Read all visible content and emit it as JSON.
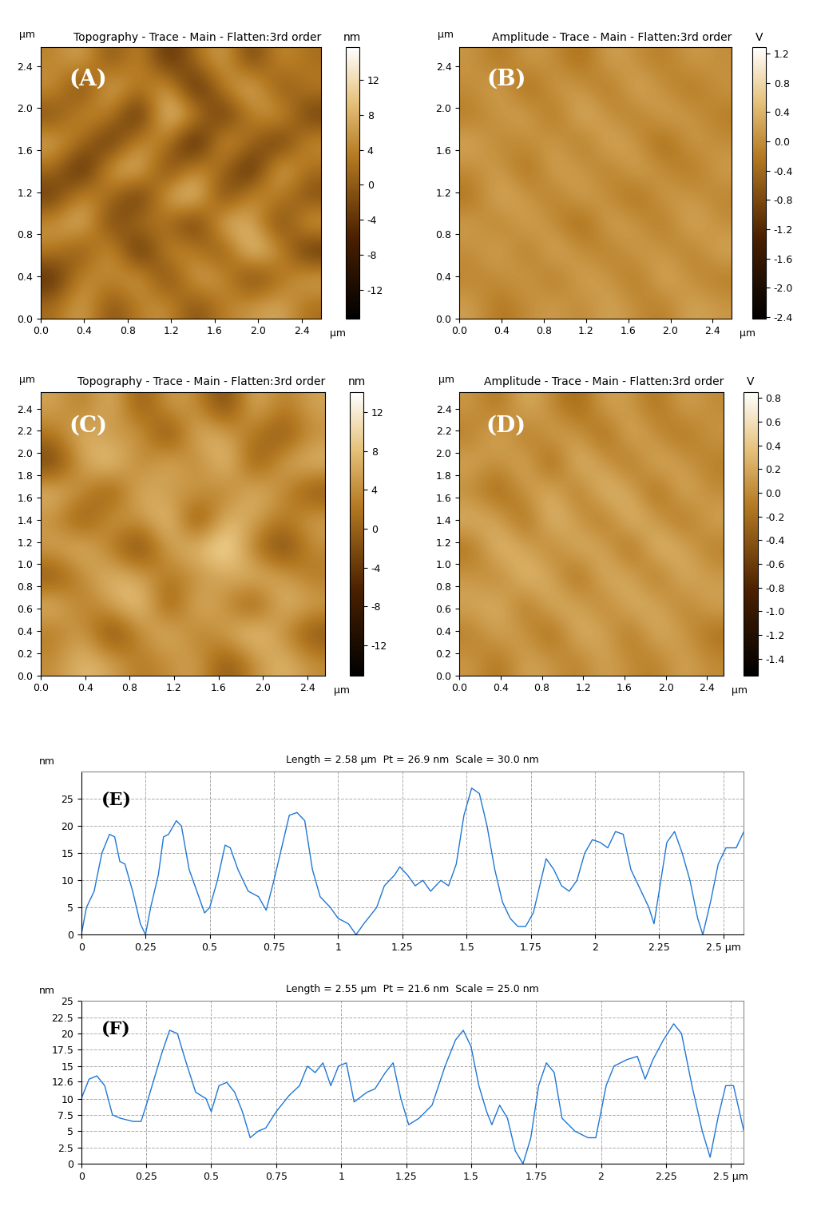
{
  "chart_data": [
    {
      "type": "heatmap",
      "title": "Topography - Trace - Main - Flatten:3rd order",
      "annotations": [
        "(A)"
      ],
      "xlabel": "µm",
      "ylabel": "µm",
      "colorbar_label": "nm",
      "xlim": [
        0,
        2.58
      ],
      "ylim": [
        0,
        2.58
      ],
      "xticks": [
        0.0,
        0.4,
        0.8,
        1.2,
        1.6,
        2.0,
        2.4
      ],
      "yticks": [
        0.0,
        0.4,
        0.8,
        1.2,
        1.6,
        2.0,
        2.4
      ],
      "colorbar_range": [
        -15.3,
        15.8
      ],
      "colorbar_ticks": [
        12,
        8,
        4,
        0,
        -4,
        -8,
        -12
      ],
      "cells": [
        [
          4,
          8,
          -2,
          6,
          -6,
          2,
          8,
          -4,
          6,
          2
        ],
        [
          6,
          -4,
          10,
          2,
          8,
          -8,
          4,
          10,
          -2,
          4
        ],
        [
          -2,
          6,
          4,
          -8,
          12,
          6,
          -6,
          4,
          8,
          -4
        ],
        [
          8,
          2,
          -6,
          6,
          4,
          -10,
          8,
          2,
          -6,
          6
        ],
        [
          2,
          -8,
          8,
          10,
          -4,
          6,
          2,
          -8,
          10,
          2
        ],
        [
          -4,
          6,
          2,
          -6,
          8,
          12,
          -4,
          6,
          4,
          -2
        ],
        [
          6,
          10,
          -4,
          4,
          2,
          -6,
          10,
          8,
          -4,
          8
        ],
        [
          4,
          -2,
          8,
          -8,
          6,
          4,
          -2,
          12,
          6,
          -6
        ],
        [
          -6,
          6,
          4,
          8,
          -4,
          8,
          6,
          -4,
          2,
          8
        ],
        [
          2,
          8,
          -2,
          4,
          6,
          -2,
          4,
          6,
          8,
          2
        ]
      ]
    },
    {
      "type": "heatmap",
      "title": "Amplitude - Trace - Main - Flatten:3rd order",
      "annotations": [
        "(B)"
      ],
      "xlabel": "µm",
      "ylabel": "µm",
      "colorbar_label": "V",
      "xlim": [
        0,
        2.58
      ],
      "ylim": [
        0,
        2.58
      ],
      "xticks": [
        0.0,
        0.4,
        0.8,
        1.2,
        1.6,
        2.0,
        2.4
      ],
      "yticks": [
        0.0,
        0.4,
        0.8,
        1.2,
        1.6,
        2.0,
        2.4
      ],
      "colorbar_range": [
        -2.42,
        1.29
      ],
      "colorbar_ticks": [
        1.2,
        0.8,
        0.4,
        0.0,
        -0.4,
        -0.8,
        -1.2,
        -1.6,
        -2.0,
        -2.4
      ],
      "cells": [
        [
          0.1,
          -0.3,
          0.2,
          0.0,
          -0.4,
          0.3,
          0.0,
          -0.2,
          0.2,
          0.0
        ],
        [
          0.0,
          0.3,
          -0.5,
          0.2,
          0.1,
          -0.3,
          0.4,
          0.0,
          -0.3,
          0.1
        ],
        [
          -0.2,
          0.1,
          0.3,
          -0.4,
          0.5,
          0.0,
          -0.2,
          0.3,
          0.1,
          -0.2
        ],
        [
          0.3,
          -0.1,
          0.0,
          0.2,
          -0.3,
          0.4,
          0.1,
          -0.5,
          0.2,
          0.0
        ],
        [
          0.0,
          0.2,
          -0.4,
          0.3,
          0.1,
          -0.2,
          0.3,
          0.0,
          -0.3,
          0.2
        ],
        [
          -0.3,
          0.4,
          0.1,
          -0.2,
          0.3,
          0.0,
          -0.4,
          0.2,
          0.1,
          -0.1
        ],
        [
          0.2,
          -0.2,
          0.3,
          0.0,
          -0.5,
          0.3,
          0.1,
          -0.3,
          0.4,
          0.0
        ],
        [
          0.0,
          0.3,
          -0.3,
          0.4,
          0.0,
          -0.2,
          0.2,
          0.1,
          -0.2,
          0.3
        ],
        [
          -0.1,
          0.0,
          0.2,
          -0.3,
          0.3,
          0.1,
          -0.3,
          0.4,
          0.0,
          -0.2
        ],
        [
          0.2,
          -0.3,
          0.0,
          0.2,
          -0.1,
          0.3,
          0.0,
          -0.2,
          0.3,
          0.1
        ]
      ]
    },
    {
      "type": "heatmap",
      "title": "Topography - Trace - Main - Flatten:3rd order",
      "annotations": [
        "(C)"
      ],
      "xlabel": "µm",
      "ylabel": "µm",
      "colorbar_label": "nm",
      "xlim": [
        0,
        2.56
      ],
      "ylim": [
        0,
        2.55
      ],
      "xticks": [
        0.0,
        0.4,
        0.8,
        1.2,
        1.6,
        2.0,
        2.4
      ],
      "yticks": [
        0.0,
        0.2,
        0.4,
        0.6,
        0.8,
        1.0,
        1.2,
        1.4,
        1.6,
        1.8,
        2.0,
        2.2,
        2.4
      ],
      "colorbar_range": [
        -15.1,
        14.1
      ],
      "colorbar_ticks": [
        12,
        8,
        4,
        0,
        -4,
        -8,
        -12
      ],
      "cells": [
        [
          6,
          2,
          8,
          -2,
          6,
          4,
          -4,
          8,
          2,
          6
        ],
        [
          2,
          8,
          4,
          6,
          -4,
          8,
          6,
          2,
          -2,
          4
        ],
        [
          -4,
          6,
          10,
          2,
          8,
          2,
          10,
          -2,
          6,
          8
        ],
        [
          8,
          4,
          -2,
          8,
          4,
          6,
          2,
          8,
          4,
          -2
        ],
        [
          4,
          -2,
          6,
          4,
          10,
          -4,
          8,
          6,
          2,
          6
        ],
        [
          6,
          8,
          2,
          -4,
          6,
          8,
          12,
          2,
          -4,
          4
        ],
        [
          -2,
          4,
          8,
          6,
          2,
          4,
          6,
          8,
          6,
          2
        ],
        [
          8,
          2,
          6,
          10,
          -2,
          8,
          4,
          -2,
          8,
          6
        ],
        [
          2,
          6,
          -4,
          4,
          8,
          2,
          6,
          10,
          4,
          -2
        ],
        [
          4,
          8,
          6,
          2,
          4,
          6,
          -2,
          4,
          8,
          4
        ]
      ]
    },
    {
      "type": "heatmap",
      "title": "Amplitude - Trace - Main - Flatten:3rd order",
      "annotations": [
        "(D)"
      ],
      "xlabel": "µm",
      "ylabel": "µm",
      "colorbar_label": "V",
      "xlim": [
        0,
        2.56
      ],
      "ylim": [
        0,
        2.55
      ],
      "xticks": [
        0.0,
        0.4,
        0.8,
        1.2,
        1.6,
        2.0,
        2.4
      ],
      "yticks": [
        0.0,
        0.2,
        0.4,
        0.6,
        0.8,
        1.0,
        1.2,
        1.4,
        1.6,
        1.8,
        2.0,
        2.2,
        2.4
      ],
      "colorbar_range": [
        -1.54,
        0.85
      ],
      "colorbar_ticks": [
        0.8,
        0.6,
        0.4,
        0.2,
        0.0,
        -0.2,
        -0.4,
        -0.6,
        -0.8,
        -1.0,
        -1.2,
        -1.4
      ],
      "cells": [
        [
          0.1,
          -0.2,
          0.3,
          0.0,
          -0.3,
          0.2,
          0.1,
          -0.2,
          0.2,
          0.0
        ],
        [
          -0.1,
          0.3,
          -0.2,
          0.2,
          0.1,
          -0.3,
          0.3,
          0.0,
          -0.2,
          0.1
        ],
        [
          0.2,
          0.0,
          0.3,
          -0.4,
          0.4,
          0.1,
          -0.2,
          0.3,
          0.1,
          -0.1
        ],
        [
          0.0,
          -0.3,
          0.1,
          0.3,
          -0.2,
          0.4,
          0.2,
          -0.3,
          0.3,
          0.0
        ],
        [
          0.3,
          0.2,
          -0.3,
          0.4,
          0.1,
          -0.2,
          0.4,
          0.1,
          -0.2,
          0.2
        ],
        [
          -0.2,
          0.4,
          0.2,
          -0.1,
          0.3,
          0.2,
          -0.3,
          0.4,
          0.2,
          -0.1
        ],
        [
          0.1,
          -0.1,
          0.4,
          0.2,
          -0.3,
          0.3,
          0.2,
          -0.2,
          0.3,
          0.1
        ],
        [
          0.2,
          0.3,
          -0.2,
          0.3,
          0.2,
          -0.1,
          0.3,
          0.2,
          -0.1,
          0.2
        ],
        [
          -0.1,
          0.2,
          0.1,
          -0.3,
          0.3,
          0.2,
          -0.2,
          0.3,
          0.1,
          -0.2
        ],
        [
          0.1,
          -0.2,
          0.2,
          0.1,
          -0.1,
          0.2,
          0.0,
          -0.1,
          0.2,
          0.0
        ]
      ]
    },
    {
      "type": "line",
      "title": "Length = 2.58 µm  Pt = 26.9 nm  Scale = 30.0 nm",
      "annotations": [
        "(E)"
      ],
      "ylabel": "nm",
      "color": "#1f77d4",
      "grid": true,
      "xlim": [
        0,
        2.58
      ],
      "ylim": [
        0,
        30
      ],
      "xticks": [
        0,
        0.25,
        0.5,
        0.75,
        1,
        1.25,
        1.5,
        1.75,
        2,
        2.25,
        {
          "value": 2.5,
          "label": "2.5 µm"
        }
      ],
      "yticks": [
        0,
        5,
        10,
        15,
        20,
        25
      ],
      "x": [
        0,
        0.02,
        0.05,
        0.08,
        0.11,
        0.13,
        0.15,
        0.17,
        0.2,
        0.23,
        0.25,
        0.27,
        0.3,
        0.32,
        0.34,
        0.37,
        0.39,
        0.42,
        0.45,
        0.48,
        0.5,
        0.53,
        0.56,
        0.58,
        0.61,
        0.65,
        0.69,
        0.72,
        0.75,
        0.78,
        0.81,
        0.84,
        0.87,
        0.9,
        0.93,
        0.97,
        1.0,
        1.04,
        1.07,
        1.1,
        1.15,
        1.18,
        1.22,
        1.24,
        1.27,
        1.3,
        1.33,
        1.36,
        1.4,
        1.43,
        1.46,
        1.49,
        1.52,
        1.55,
        1.58,
        1.61,
        1.64,
        1.67,
        1.7,
        1.73,
        1.76,
        1.79,
        1.81,
        1.84,
        1.87,
        1.9,
        1.93,
        1.96,
        1.99,
        2.02,
        2.05,
        2.08,
        2.11,
        2.14,
        2.18,
        2.21,
        2.23,
        2.25,
        2.28,
        2.31,
        2.34,
        2.37,
        2.4,
        2.42,
        2.45,
        2.48,
        2.51,
        2.55,
        2.58
      ],
      "values": [
        0,
        5,
        8,
        15,
        18.5,
        18,
        13.5,
        13,
        8,
        2,
        0,
        5,
        11,
        18,
        18.5,
        21,
        20,
        12,
        8,
        4,
        5,
        10,
        16.5,
        16,
        12,
        8,
        7,
        4.5,
        10,
        16,
        22,
        22.5,
        21,
        12,
        7,
        5,
        3,
        2,
        0,
        2,
        5,
        9,
        11,
        12.5,
        11,
        9,
        10,
        8,
        10,
        9,
        13,
        22,
        27,
        26,
        20,
        12,
        6,
        3,
        1.5,
        1.5,
        4,
        10,
        14,
        12,
        9,
        8,
        10,
        15,
        17.5,
        17,
        16,
        19,
        18.5,
        12,
        8,
        5,
        2,
        8,
        17,
        19,
        15,
        10,
        3,
        0,
        6,
        13,
        16,
        16,
        19
      ]
    },
    {
      "type": "line",
      "title": "Length = 2.55 µm  Pt = 21.6 nm  Scale = 25.0 nm",
      "annotations": [
        "(F)"
      ],
      "ylabel": "nm",
      "color": "#1f77d4",
      "grid": true,
      "xlim": [
        0,
        2.55
      ],
      "ylim": [
        0,
        25
      ],
      "xticks": [
        0,
        0.25,
        0.5,
        0.75,
        1,
        1.25,
        1.5,
        1.75,
        2,
        2.25,
        {
          "value": 2.5,
          "label": "2.5 µm"
        }
      ],
      "yticks": [
        0,
        2.5,
        5,
        7.5,
        10,
        12.6,
        15,
        17.5,
        20,
        22.5,
        25
      ],
      "x": [
        0,
        0.03,
        0.06,
        0.09,
        0.12,
        0.15,
        0.2,
        0.23,
        0.25,
        0.28,
        0.31,
        0.34,
        0.37,
        0.4,
        0.44,
        0.48,
        0.5,
        0.53,
        0.56,
        0.59,
        0.62,
        0.65,
        0.68,
        0.71,
        0.75,
        0.8,
        0.84,
        0.87,
        0.9,
        0.93,
        0.96,
        0.99,
        1.02,
        1.05,
        1.1,
        1.13,
        1.17,
        1.2,
        1.23,
        1.26,
        1.3,
        1.35,
        1.4,
        1.44,
        1.47,
        1.5,
        1.53,
        1.56,
        1.58,
        1.61,
        1.64,
        1.67,
        1.7,
        1.73,
        1.76,
        1.79,
        1.82,
        1.85,
        1.9,
        1.95,
        1.98,
        2.02,
        2.05,
        2.1,
        2.14,
        2.17,
        2.2,
        2.24,
        2.28,
        2.31,
        2.35,
        2.39,
        2.42,
        2.45,
        2.48,
        2.51,
        2.55
      ],
      "values": [
        10,
        13,
        13.5,
        12,
        7.5,
        7,
        6.5,
        6.5,
        9,
        13,
        17,
        20.5,
        20,
        16,
        11,
        10,
        8,
        12,
        12.5,
        11,
        8,
        4,
        5,
        5.5,
        8,
        10.5,
        12,
        15,
        14,
        15.5,
        12,
        15,
        15.5,
        9.5,
        11,
        11.5,
        14,
        15.5,
        10,
        6,
        7,
        9,
        15,
        19,
        20.5,
        18,
        12,
        8,
        6,
        9,
        7,
        2,
        0,
        4,
        12,
        15.5,
        14,
        7,
        5,
        4,
        4,
        12,
        15,
        16,
        16.5,
        13,
        16,
        19,
        21.5,
        20,
        12,
        5,
        1,
        7,
        12,
        12,
        5
      ]
    }
  ]
}
